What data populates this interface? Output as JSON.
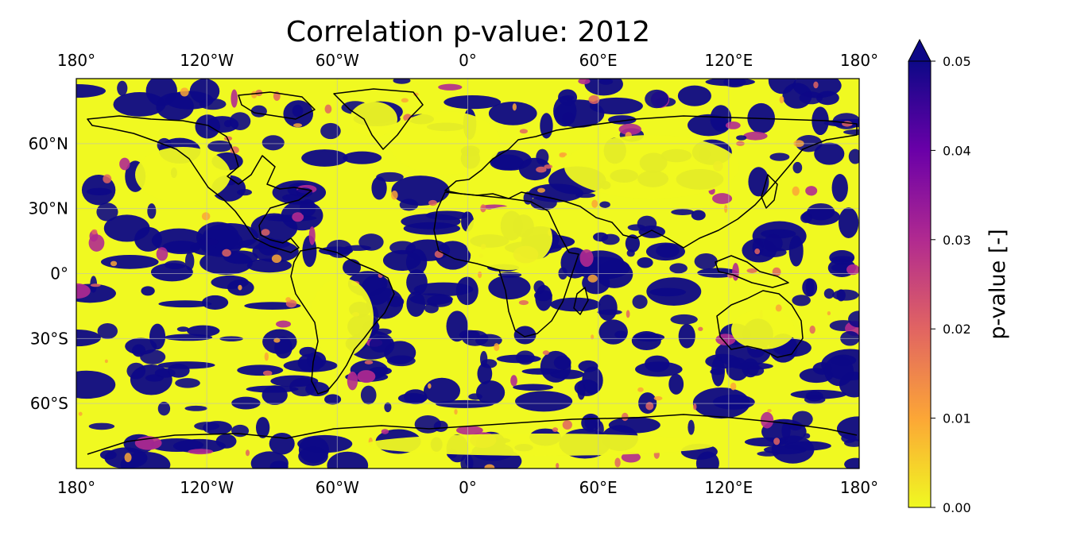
{
  "map": {
    "title": "Correlation p-value: 2012",
    "projection": "PlateCarree",
    "extent": {
      "lon": [
        -180,
        180
      ],
      "lat": [
        -90,
        90
      ]
    },
    "gridlines": true,
    "lon_ticks": [
      {
        "value": -180,
        "label": "180°"
      },
      {
        "value": -120,
        "label": "120°W"
      },
      {
        "value": -60,
        "label": "60°W"
      },
      {
        "value": 0,
        "label": "0°"
      },
      {
        "value": 60,
        "label": "60°E"
      },
      {
        "value": 120,
        "label": "120°E"
      },
      {
        "value": 180,
        "label": "180°"
      }
    ],
    "lat_ticks": [
      {
        "value": 60,
        "label": "60°N"
      },
      {
        "value": 30,
        "label": "30°N"
      },
      {
        "value": 0,
        "label": "0°"
      },
      {
        "value": -30,
        "label": "30°S"
      },
      {
        "value": -60,
        "label": "60°S"
      }
    ],
    "low_color": "#f0f921",
    "high_color": "#0d0887"
  },
  "colorbar": {
    "label": "p-value [-]",
    "range": [
      0.0,
      0.05
    ],
    "extend": "max",
    "colormap": "plasma_r",
    "ticks": [
      {
        "value": 0.0,
        "label": "0.00"
      },
      {
        "value": 0.01,
        "label": "0.01"
      },
      {
        "value": 0.02,
        "label": "0.02"
      },
      {
        "value": 0.03,
        "label": "0.03"
      },
      {
        "value": 0.04,
        "label": "0.04"
      },
      {
        "value": 0.05,
        "label": "0.05"
      }
    ],
    "stops": [
      "#f0f921",
      "#fca636",
      "#e16462",
      "#b12a90",
      "#6a00a8",
      "#0d0887"
    ]
  }
}
